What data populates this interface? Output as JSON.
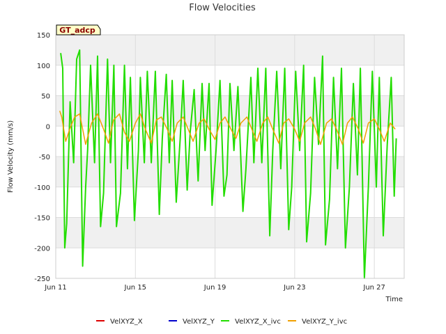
{
  "chart_data": {
    "type": "line",
    "title": "Flow Velocities",
    "xlabel": "Time",
    "ylabel": "Flow Velocity (mm/s)",
    "badge": "GT_adcp",
    "xlim": [
      11,
      28.5
    ],
    "ylim": [
      -250,
      150
    ],
    "x_ticks": [
      {
        "day": 11,
        "label": "Jun 11"
      },
      {
        "day": 15,
        "label": "Jun 15"
      },
      {
        "day": 19,
        "label": "Jun 19"
      },
      {
        "day": 23,
        "label": "Jun 23"
      },
      {
        "day": 27,
        "label": "Jun 27"
      }
    ],
    "y_ticks": [
      150,
      100,
      50,
      0,
      -50,
      -100,
      -150,
      -200,
      -250
    ],
    "grid": true,
    "legend_position": "bottom-center",
    "series": [
      {
        "name": "VelXYZ_X",
        "color": "#dd0000",
        "x": [],
        "values": []
      },
      {
        "name": "VelXYZ_Y",
        "color": "#0000cc",
        "x": [],
        "values": []
      },
      {
        "name": "VelXYZ_X_ivc",
        "color": "#22dd00",
        "x": [
          11.25,
          11.35,
          11.45,
          11.55,
          11.72,
          11.9,
          12.05,
          12.2,
          12.35,
          12.5,
          12.6,
          12.75,
          12.95,
          13.1,
          13.25,
          13.4,
          13.6,
          13.75,
          13.92,
          14.05,
          14.25,
          14.45,
          14.6,
          14.75,
          14.95,
          15.15,
          15.25,
          15.45,
          15.6,
          15.8,
          16.0,
          16.2,
          16.35,
          16.55,
          16.7,
          16.85,
          17.05,
          17.25,
          17.4,
          17.6,
          17.75,
          17.95,
          18.15,
          18.35,
          18.5,
          18.7,
          18.85,
          19.05,
          19.25,
          19.45,
          19.6,
          19.75,
          19.95,
          20.15,
          20.4,
          20.55,
          20.8,
          20.95,
          21.15,
          21.35,
          21.55,
          21.75,
          21.9,
          22.1,
          22.3,
          22.5,
          22.7,
          22.85,
          23.05,
          23.25,
          23.45,
          23.6,
          23.8,
          24.0,
          24.2,
          24.4,
          24.55,
          24.75,
          24.95,
          25.15,
          25.35,
          25.55,
          25.75,
          25.95,
          26.15,
          26.3,
          26.5,
          26.7,
          26.9,
          27.1,
          27.25,
          27.45,
          27.65,
          27.85,
          28.0,
          28.1
        ],
        "values": [
          120,
          95,
          -200,
          -160,
          40,
          -60,
          110,
          125,
          -230,
          -100,
          -40,
          100,
          -60,
          115,
          -165,
          -110,
          110,
          -60,
          100,
          -165,
          -110,
          100,
          -70,
          80,
          -155,
          -40,
          80,
          -60,
          90,
          -60,
          90,
          -145,
          -20,
          85,
          -60,
          75,
          -125,
          -20,
          75,
          -105,
          -10,
          60,
          -90,
          70,
          -40,
          70,
          -130,
          -40,
          75,
          -115,
          -80,
          70,
          -40,
          65,
          -140,
          -70,
          80,
          -60,
          95,
          -60,
          95,
          -180,
          -40,
          90,
          -70,
          95,
          -170,
          -100,
          90,
          -40,
          100,
          -190,
          -110,
          80,
          -30,
          115,
          -195,
          -120,
          80,
          -70,
          95,
          -200,
          -100,
          70,
          -80,
          95,
          -250,
          -100,
          90,
          -100,
          80,
          -180,
          -30,
          80,
          -115,
          -20
        ]
      },
      {
        "name": "VelXYZ_Y_ivc",
        "color": "#f0a000",
        "x": [
          11.2,
          11.3,
          11.5,
          11.7,
          11.95,
          12.2,
          12.5,
          12.8,
          13.1,
          13.4,
          13.65,
          13.9,
          14.2,
          14.45,
          14.7,
          15.0,
          15.25,
          15.5,
          15.8,
          16.05,
          16.3,
          16.6,
          16.85,
          17.1,
          17.4,
          17.65,
          17.9,
          18.2,
          18.45,
          18.7,
          19.0,
          19.25,
          19.5,
          19.8,
          20.05,
          20.3,
          20.6,
          20.85,
          21.1,
          21.4,
          21.65,
          21.9,
          22.2,
          22.45,
          22.7,
          23.0,
          23.25,
          23.5,
          23.8,
          24.05,
          24.3,
          24.6,
          24.85,
          25.1,
          25.4,
          25.65,
          25.9,
          26.2,
          26.45,
          26.7,
          27.0,
          27.25,
          27.5,
          27.8,
          28.05
        ],
        "values": [
          25,
          15,
          -25,
          -5,
          15,
          20,
          -30,
          5,
          20,
          -5,
          -28,
          10,
          20,
          -10,
          -25,
          5,
          20,
          -5,
          -28,
          10,
          15,
          -5,
          -25,
          5,
          15,
          -5,
          -25,
          5,
          12,
          -5,
          -22,
          5,
          15,
          -5,
          -20,
          5,
          15,
          -5,
          -25,
          5,
          15,
          -5,
          -28,
          5,
          12,
          -5,
          -25,
          5,
          15,
          -5,
          -30,
          5,
          12,
          -5,
          -30,
          5,
          15,
          -5,
          -28,
          5,
          12,
          -5,
          -25,
          5,
          -5
        ]
      }
    ]
  }
}
